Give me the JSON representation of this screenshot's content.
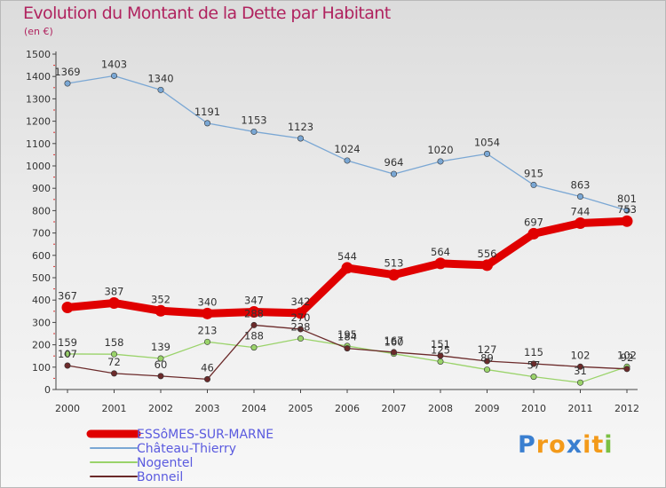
{
  "chart_data": {
    "type": "line",
    "title": "Evolution du Montant de la Dette par Habitant",
    "unit_label": "(en €)",
    "x": [
      "2000",
      "2001",
      "2002",
      "2003",
      "2004",
      "2005",
      "2006",
      "2007",
      "2008",
      "2009",
      "2010",
      "2011",
      "2012"
    ],
    "ylim": [
      0,
      1500
    ],
    "yticks": [
      0,
      100,
      200,
      300,
      400,
      500,
      600,
      700,
      800,
      900,
      1000,
      1100,
      1200,
      1300,
      1400,
      1500
    ],
    "grid": false,
    "legend_position": "bottom-left",
    "series": [
      {
        "name": "ESSôMES-SUR-MARNE",
        "color": "#e00000",
        "emphasis": true,
        "values": [
          367,
          387,
          352,
          340,
          347,
          342,
          544,
          513,
          564,
          556,
          697,
          744,
          753
        ]
      },
      {
        "name": "Château-Thierry",
        "color": "#7aa7d4",
        "values": [
          1369,
          1403,
          1340,
          1191,
          1153,
          1123,
          1024,
          964,
          1020,
          1054,
          915,
          863,
          801
        ]
      },
      {
        "name": "Nogentel",
        "color": "#9ad36a",
        "values": [
          159,
          158,
          139,
          213,
          188,
          228,
          195,
          160,
          125,
          89,
          57,
          31,
          102
        ]
      },
      {
        "name": "Bonneil",
        "color": "#6b2a2a",
        "values": [
          107,
          72,
          60,
          46,
          288,
          270,
          184,
          167,
          151,
          127,
          115,
          102,
          92
        ]
      }
    ]
  },
  "logo": {
    "letters": [
      "P",
      "r",
      "o",
      "x",
      "i",
      "t",
      "i"
    ],
    "colors": [
      "#3a7fd0",
      "#f39a1a",
      "#f39a1a",
      "#3a7fd0",
      "#f39a1a",
      "#f39a1a",
      "#7bc043"
    ]
  }
}
